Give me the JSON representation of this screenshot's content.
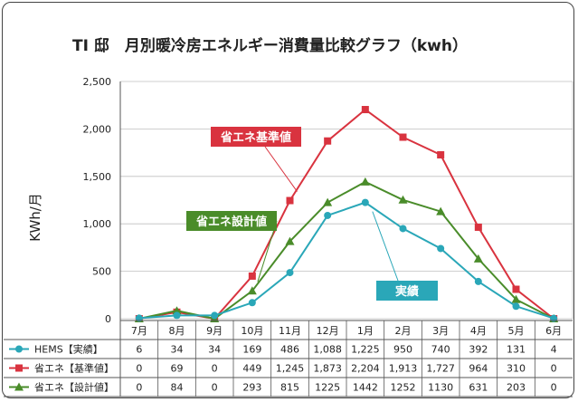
{
  "chart_data": {
    "type": "line",
    "title": "TI 邸　月別暖冷房エネルギー消費量比較グラフ（kwh）",
    "ylabel": "KWh/月",
    "xlabel": "",
    "ylim": [
      0,
      2500
    ],
    "yticks": [
      "0",
      "500",
      "1,000",
      "1,500",
      "2,000",
      "2,500"
    ],
    "ytick_values": [
      0,
      500,
      1000,
      1500,
      2000,
      2500
    ],
    "categories": [
      "7月",
      "8月",
      "9月",
      "10月",
      "11月",
      "12月",
      "1月",
      "2月",
      "3月",
      "4月",
      "5月",
      "6月"
    ],
    "grid": true,
    "series": [
      {
        "name": "HEMS【実績】",
        "callout": "実績",
        "color": "#2aa7b8",
        "marker": "circle",
        "values": [
          6,
          34,
          34,
          169,
          486,
          1088,
          1225,
          950,
          740,
          392,
          131,
          4
        ],
        "table_values": [
          "6",
          "34",
          "34",
          "169",
          "486",
          "1,088",
          "1,225",
          "950",
          "740",
          "392",
          "131",
          "4"
        ]
      },
      {
        "name": "省エネ【基準値】",
        "callout": "省エネ基準値",
        "color": "#d9333f",
        "marker": "square",
        "values": [
          0,
          69,
          0,
          449,
          1245,
          1873,
          2204,
          1913,
          1727,
          964,
          310,
          0
        ],
        "table_values": [
          "0",
          "69",
          "0",
          "449",
          "1,245",
          "1,873",
          "2,204",
          "1,913",
          "1,727",
          "964",
          "310",
          "0"
        ]
      },
      {
        "name": "省エネ【設計値】",
        "callout": "省エネ設計値",
        "color": "#4a8c2a",
        "marker": "triangle",
        "values": [
          0,
          84,
          0,
          293,
          815,
          1225,
          1442,
          1252,
          1130,
          631,
          203,
          0
        ],
        "table_values": [
          "0",
          "84",
          "0",
          "293",
          "815",
          "1225",
          "1442",
          "1252",
          "1130",
          "631",
          "203",
          "0"
        ]
      }
    ]
  }
}
